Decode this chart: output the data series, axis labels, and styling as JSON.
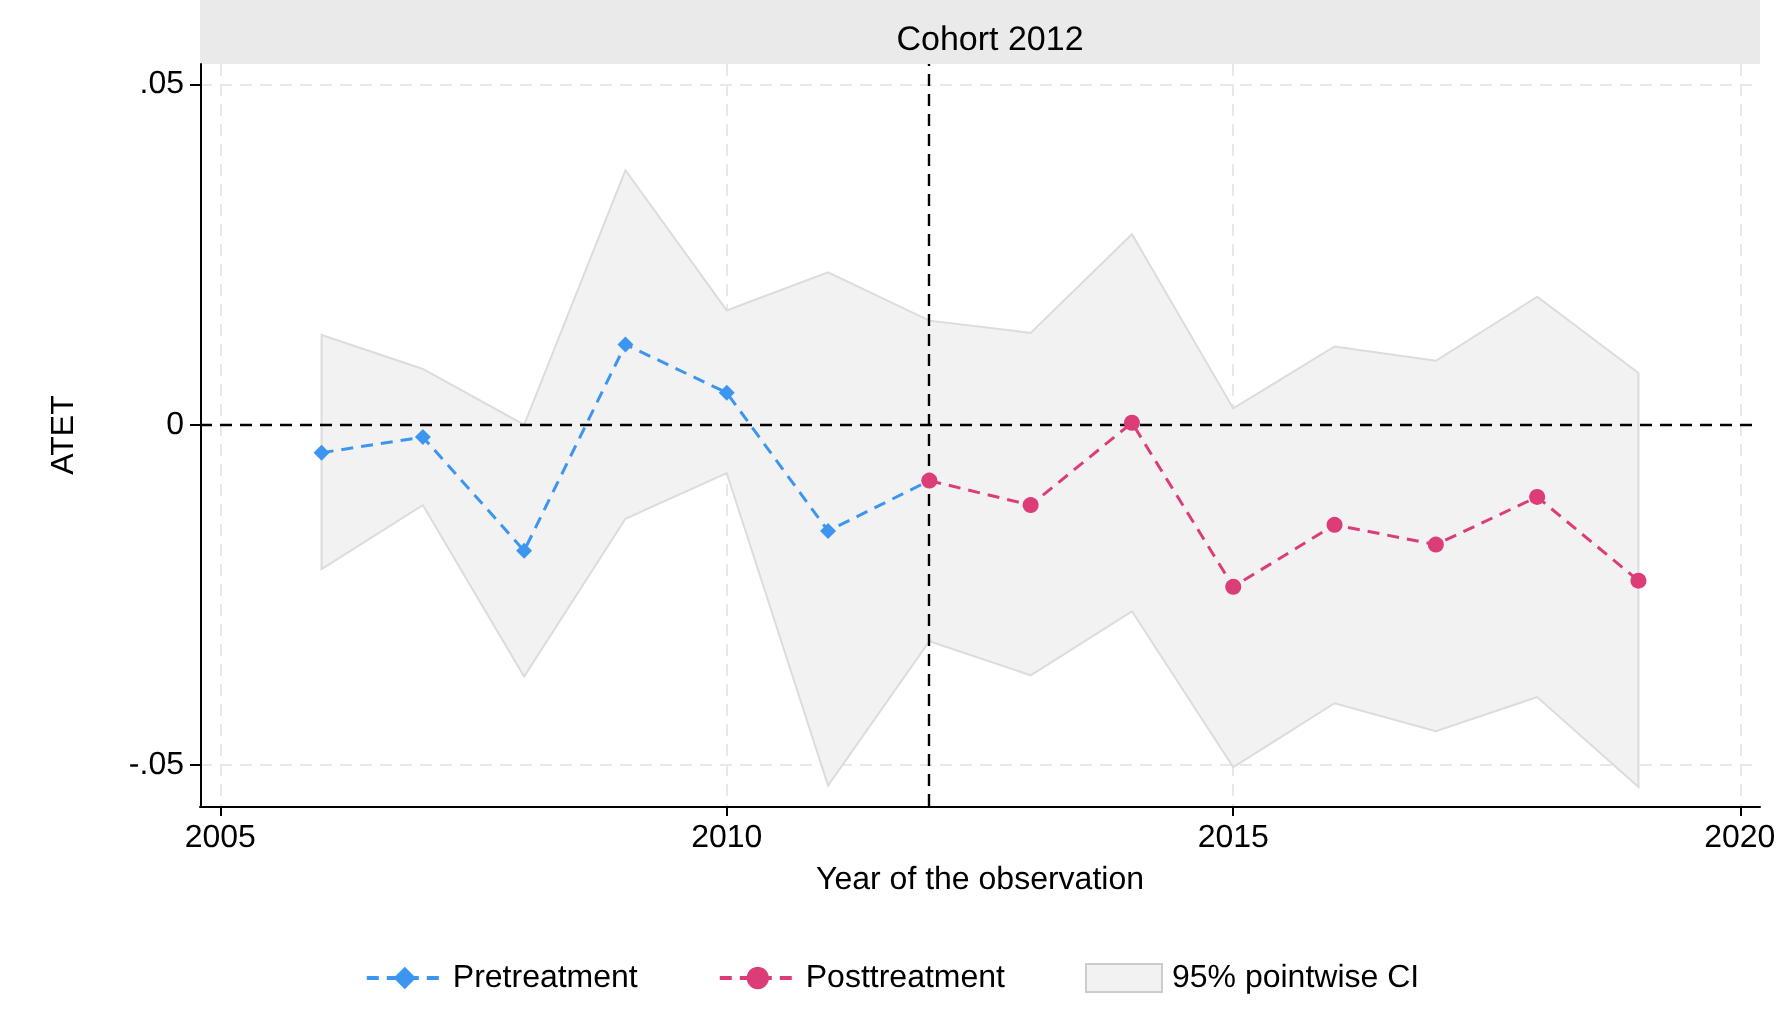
{
  "chart_data": {
    "type": "line",
    "title": "Cohort 2012",
    "xlabel": "Year of the observation",
    "ylabel": "ATET",
    "xlim": [
      2004.8,
      2020.2
    ],
    "xticks": [
      2005,
      2010,
      2015,
      2020
    ],
    "ylim": [
      -0.056,
      0.053
    ],
    "yticks": [
      {
        "value": 0.05,
        "label": ".05"
      },
      {
        "value": 0,
        "label": "0"
      },
      {
        "value": -0.05,
        "label": "-.05"
      }
    ],
    "grid": true,
    "legend": "bottom",
    "line_style": "dashed",
    "ref_lines": [
      {
        "axis": "y",
        "value": 0,
        "label": null,
        "color": "#000000",
        "line_style": "dashed"
      },
      {
        "axis": "x",
        "value": 2012,
        "label": null,
        "color": "#000000",
        "line_style": "dashed"
      }
    ],
    "series": [
      {
        "name": "Pretreatment",
        "color": "#3c96f0",
        "marker": "diamond",
        "x": [
          2006,
          2007,
          2008,
          2009,
          2010,
          2011,
          2012
        ],
        "values": [
          -0.0041,
          -0.0018,
          -0.0185,
          0.0118,
          0.0047,
          -0.0156,
          -0.0082
        ]
      },
      {
        "name": "Posttreatment",
        "color": "#dc3c78",
        "marker": "circle",
        "x": [
          2012,
          2013,
          2014,
          2015,
          2016,
          2017,
          2018,
          2019
        ],
        "values": [
          -0.0082,
          -0.0118,
          0.0003,
          -0.0238,
          -0.0147,
          -0.0176,
          -0.0106,
          -0.0229
        ]
      },
      {
        "name": "95% pointwise CI",
        "type": "area",
        "color": "#f2f2f2",
        "x": [
          2006,
          2007,
          2008,
          2009,
          2010,
          2011,
          2012,
          2013,
          2014,
          2015,
          2016,
          2017,
          2018,
          2019
        ],
        "values": [
          null,
          null,
          null,
          null,
          null,
          null,
          null,
          null,
          null,
          null,
          null,
          null,
          null,
          null
        ],
        "lower": [
          -0.0212,
          -0.0118,
          -0.037,
          -0.0138,
          -0.0071,
          -0.053,
          -0.0318,
          -0.0368,
          -0.0274,
          -0.0503,
          -0.0409,
          -0.045,
          -0.04,
          -0.0532
        ],
        "upper": [
          0.0132,
          0.0082,
          0,
          0.0374,
          0.0168,
          0.0224,
          0.0153,
          0.0135,
          0.028,
          0.0024,
          0.0115,
          0.0094,
          0.0188,
          0.0076
        ]
      }
    ]
  }
}
